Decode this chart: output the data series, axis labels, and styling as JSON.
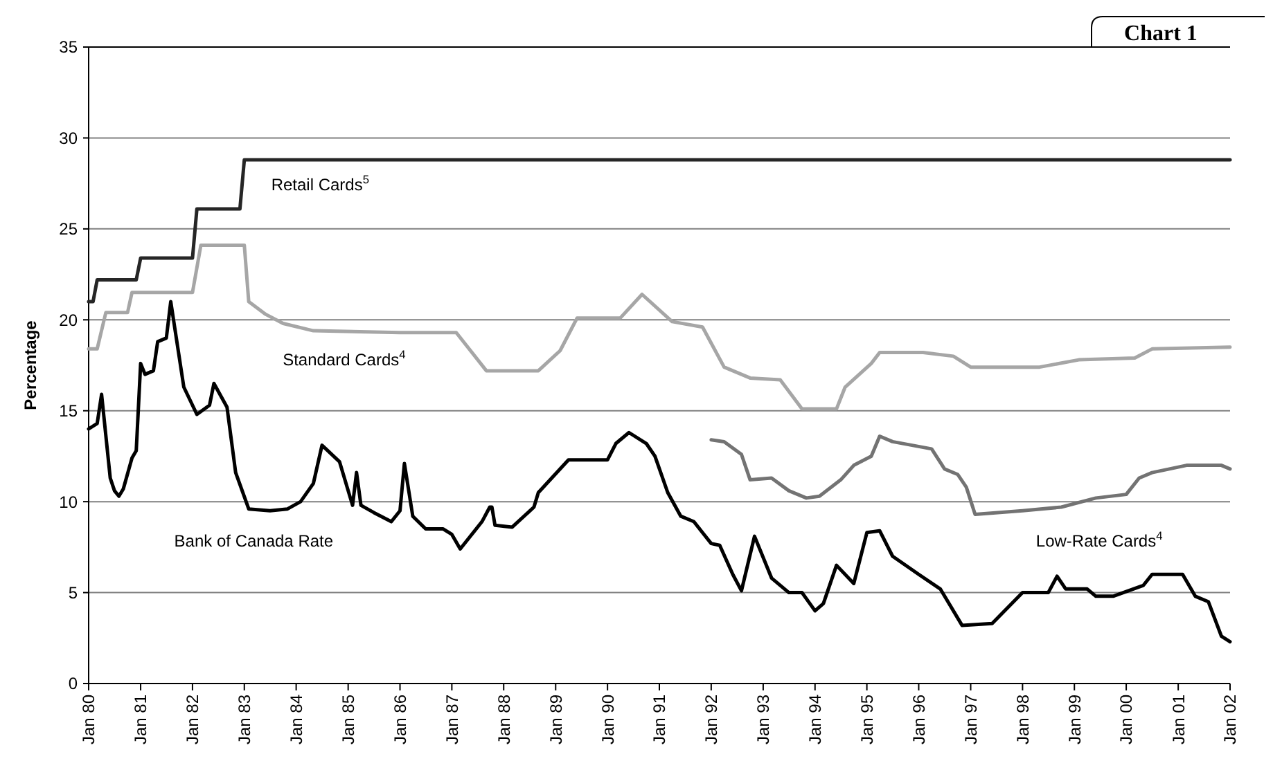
{
  "chart_data": {
    "type": "line",
    "title": "Chart 1",
    "ylabel": "Percentage",
    "xlim": [
      "1980-01",
      "2002-01"
    ],
    "ylim": [
      0,
      35
    ],
    "yticks": [
      0,
      5,
      10,
      15,
      20,
      25,
      30,
      35
    ],
    "xticks": [
      {
        "value": "1980-01",
        "label": "Jan 80"
      },
      {
        "value": "1981-01",
        "label": "Jan 81"
      },
      {
        "value": "1982-01",
        "label": "Jan 82"
      },
      {
        "value": "1983-01",
        "label": "Jan 83"
      },
      {
        "value": "1984-01",
        "label": "Jan 84"
      },
      {
        "value": "1985-01",
        "label": "Jan 85"
      },
      {
        "value": "1986-01",
        "label": "Jan 86"
      },
      {
        "value": "1987-01",
        "label": "Jan 87"
      },
      {
        "value": "1988-01",
        "label": "Jan 88"
      },
      {
        "value": "1989-01",
        "label": "Jan 89"
      },
      {
        "value": "1990-01",
        "label": "Jan 90"
      },
      {
        "value": "1991-01",
        "label": "Jan 91"
      },
      {
        "value": "1992-01",
        "label": "Jan 92"
      },
      {
        "value": "1993-01",
        "label": "Jan 93"
      },
      {
        "value": "1994-01",
        "label": "Jan 94"
      },
      {
        "value": "1995-01",
        "label": "Jan 95"
      },
      {
        "value": "1996-01",
        "label": "Jan 96"
      },
      {
        "value": "1997-01",
        "label": "Jan 97"
      },
      {
        "value": "1998-01",
        "label": "Jan 98"
      },
      {
        "value": "1999-01",
        "label": "Jan 99"
      },
      {
        "value": "2000-01",
        "label": "Jan 00"
      },
      {
        "value": "2001-01",
        "label": "Jan 01"
      },
      {
        "value": "2002-01",
        "label": "Jan 02"
      }
    ],
    "grid": "y",
    "line_style": "solid",
    "marker": "none",
    "series": [
      {
        "name": "Retail Cards$^{5}$",
        "color": "#262626",
        "x": [
          "1980-01",
          "1980-02",
          "1980-03",
          "1980-12",
          "1981-01",
          "1982-01",
          "1982-02",
          "1982-12",
          "1983-01",
          "2002-01"
        ],
        "values": [
          21.0,
          21.0,
          22.2,
          22.2,
          23.4,
          23.4,
          26.1,
          26.1,
          28.8,
          28.8
        ]
      },
      {
        "name": "Standard Cards$^{4}$",
        "color": "#a6a6a6",
        "x": [
          "1980-01",
          "1980-03",
          "1980-05",
          "1980-10",
          "1980-11",
          "1982-01",
          "1982-03",
          "1983-01",
          "1983-02",
          "1983-06",
          "1983-10",
          "1984-05",
          "1986-01",
          "1987-02",
          "1987-09",
          "1988-09",
          "1989-02",
          "1989-06",
          "1990-04",
          "1990-09",
          "1991-04",
          "1991-11",
          "1992-04",
          "1992-10",
          "1993-05",
          "1993-10",
          "1994-06",
          "1994-08",
          "1995-02",
          "1995-04",
          "1996-02",
          "1996-09",
          "1997-01",
          "1998-05",
          "1999-02",
          "2000-03",
          "2000-07",
          "2002-01"
        ],
        "values": [
          18.4,
          18.4,
          20.4,
          20.4,
          21.5,
          21.5,
          24.1,
          24.1,
          21.0,
          20.3,
          19.8,
          19.4,
          19.3,
          19.3,
          17.2,
          17.2,
          18.3,
          20.1,
          20.1,
          21.4,
          19.9,
          19.6,
          17.4,
          16.8,
          16.7,
          15.1,
          15.1,
          16.3,
          17.6,
          18.2,
          18.2,
          18.0,
          17.4,
          17.4,
          17.8,
          17.9,
          18.4,
          18.5
        ]
      },
      {
        "name": "Low-Rate Cards$^{4}$",
        "color": "#737373",
        "x": [
          "1992-01",
          "1992-04",
          "1992-08",
          "1992-10",
          "1993-03",
          "1993-07",
          "1993-11",
          "1994-02",
          "1994-07",
          "1994-10",
          "1995-02",
          "1995-04",
          "1995-07",
          "1996-04",
          "1996-07",
          "1996-10",
          "1996-12",
          "1997-02",
          "1998-01",
          "1998-10",
          "1999-06",
          "2000-01",
          "2000-04",
          "2000-07",
          "2001-03",
          "2001-11",
          "2002-01"
        ],
        "values": [
          13.4,
          13.3,
          12.6,
          11.2,
          11.3,
          10.6,
          10.2,
          10.3,
          11.2,
          12.0,
          12.5,
          13.6,
          13.3,
          12.9,
          11.8,
          11.5,
          10.8,
          9.3,
          9.5,
          9.7,
          10.2,
          10.4,
          11.3,
          11.6,
          12.0,
          12.0,
          11.8
        ]
      },
      {
        "name": "Bank of Canada Rate",
        "color": "#000000",
        "x": [
          "1980-01",
          "1980-03",
          "1980-04",
          "1980-06",
          "1980-07",
          "1980-08",
          "1980-09",
          "1980-11",
          "1980-12",
          "1981-01",
          "1981-02",
          "1981-04",
          "1981-05",
          "1981-07",
          "1981-08",
          "1981-11",
          "1982-02",
          "1982-05",
          "1982-06",
          "1982-09",
          "1982-11",
          "1983-02",
          "1983-07",
          "1983-11",
          "1984-02",
          "1984-05",
          "1984-07",
          "1984-11",
          "1985-02",
          "1985-03",
          "1985-04",
          "1985-07",
          "1985-11",
          "1986-01",
          "1986-02",
          "1986-04",
          "1986-07",
          "1986-11",
          "1987-01",
          "1987-03",
          "1987-08",
          "1987-09-25",
          "1987-10-10",
          "1987-11",
          "1988-03",
          "1988-08",
          "1988-09",
          "1989-04",
          "1990-01",
          "1990-03",
          "1990-06",
          "1990-10",
          "1990-12",
          "1991-03",
          "1991-06",
          "1991-09",
          "1992-01",
          "1992-03",
          "1992-06",
          "1992-08",
          "1992-11",
          "1993-03",
          "1993-07",
          "1993-10",
          "1994-01",
          "1994-03",
          "1994-06",
          "1994-10",
          "1995-01",
          "1995-04",
          "1995-07",
          "1996-01",
          "1996-06",
          "1996-11",
          "1997-06",
          "1998-01",
          "1998-07",
          "1998-09",
          "1998-11",
          "1999-04",
          "1999-06",
          "1999-10",
          "2000-05",
          "2000-07",
          "2001-02",
          "2001-05",
          "2001-08",
          "2001-11",
          "2002-01"
        ],
        "values": [
          14.0,
          14.3,
          15.9,
          11.3,
          10.6,
          10.3,
          10.7,
          12.4,
          12.8,
          17.6,
          17.0,
          17.2,
          18.8,
          19.0,
          21.0,
          16.3,
          14.8,
          15.3,
          16.5,
          15.2,
          11.6,
          9.6,
          9.5,
          9.6,
          10.0,
          11.0,
          13.1,
          12.2,
          9.8,
          11.6,
          9.8,
          9.4,
          8.9,
          9.5,
          12.1,
          9.2,
          8.5,
          8.5,
          8.2,
          7.4,
          8.9,
          9.7,
          9.7,
          8.7,
          8.6,
          9.7,
          10.5,
          12.3,
          12.3,
          13.2,
          13.8,
          13.2,
          12.5,
          10.5,
          9.2,
          8.9,
          7.7,
          7.6,
          6.0,
          5.1,
          8.1,
          5.8,
          5.0,
          5.0,
          4.0,
          4.4,
          6.5,
          5.5,
          8.3,
          8.4,
          7.0,
          6.0,
          5.2,
          3.2,
          3.3,
          5.0,
          5.0,
          5.9,
          5.2,
          5.2,
          4.8,
          4.8,
          5.4,
          6.0,
          6.0,
          4.8,
          4.5,
          2.6,
          2.3
        ]
      }
    ]
  }
}
